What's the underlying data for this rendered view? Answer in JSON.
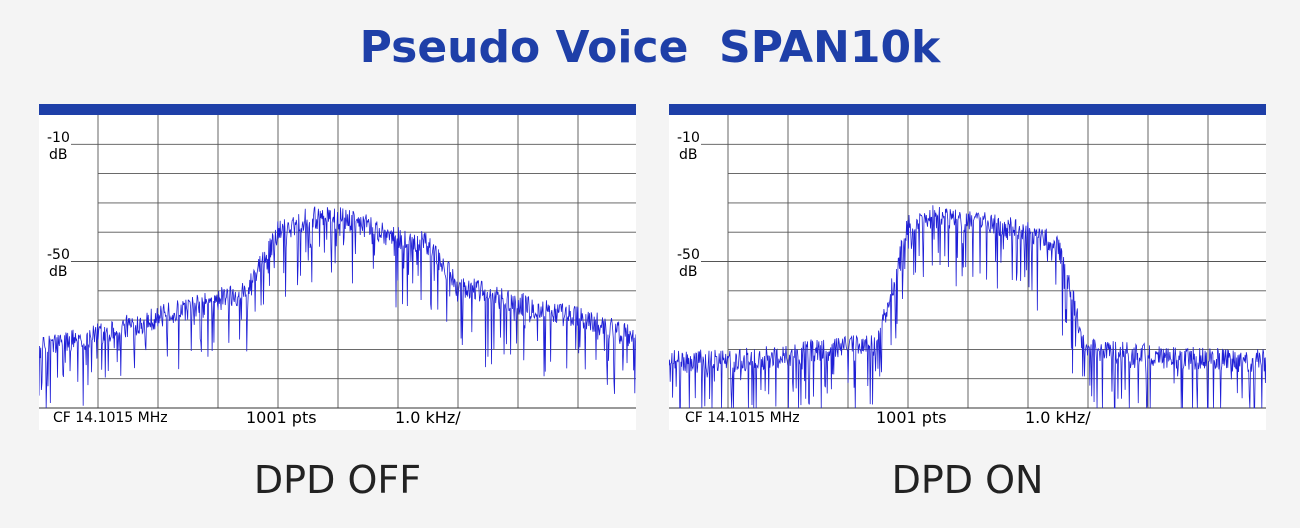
{
  "page": {
    "title": "Pseudo Voice  SPAN10k",
    "colors": {
      "title": "#1e3fa8",
      "header_bar": "#1e3fa8",
      "trace": "#1f1fd6",
      "grid": "#555555"
    }
  },
  "chart_data": [
    {
      "type": "line",
      "caption": "DPD OFF",
      "y_labels": [
        {
          "value": "-10",
          "unit": "dB"
        },
        {
          "value": "-50",
          "unit": "dB"
        }
      ],
      "footer": {
        "center_freq": "CF 14.1015 MHz",
        "points": "1001 pts",
        "span_per_div": "1.0 kHz/"
      },
      "x": [
        -5,
        -4.5,
        -4,
        -3.5,
        -3,
        -2.5,
        -2,
        -1.5,
        -1,
        -0.5,
        0,
        0.5,
        1,
        1.5,
        2,
        2.5,
        3,
        3.5,
        4,
        4.5,
        5
      ],
      "envelope_db": [
        -80,
        -77,
        -75,
        -72,
        -69,
        -66,
        -63,
        -60,
        -40,
        -35,
        -35,
        -38,
        -42,
        -44,
        -58,
        -61,
        -64,
        -67,
        -69,
        -72,
        -76
      ],
      "points": 1001,
      "grid": true
    },
    {
      "type": "line",
      "caption": "DPD ON",
      "y_labels": [
        {
          "value": "-10",
          "unit": "dB"
        },
        {
          "value": "-50",
          "unit": "dB"
        }
      ],
      "footer": {
        "center_freq": "CF 14.1015 MHz",
        "points": "1001 pts",
        "span_per_div": "1.0 kHz/"
      },
      "x": [
        -5,
        -4.5,
        -4,
        -3.5,
        -3,
        -2.5,
        -2,
        -1.5,
        -1,
        -0.5,
        0,
        0.5,
        1,
        1.5,
        2,
        2.5,
        3,
        3.5,
        4,
        4.5,
        5
      ],
      "envelope_db": [
        -84,
        -84,
        -84,
        -83,
        -82,
        -80,
        -79,
        -78,
        -38,
        -34,
        -36,
        -38,
        -40,
        -44,
        -80,
        -81,
        -82,
        -83,
        -83,
        -84,
        -84
      ],
      "points": 1001,
      "grid": true
    }
  ]
}
